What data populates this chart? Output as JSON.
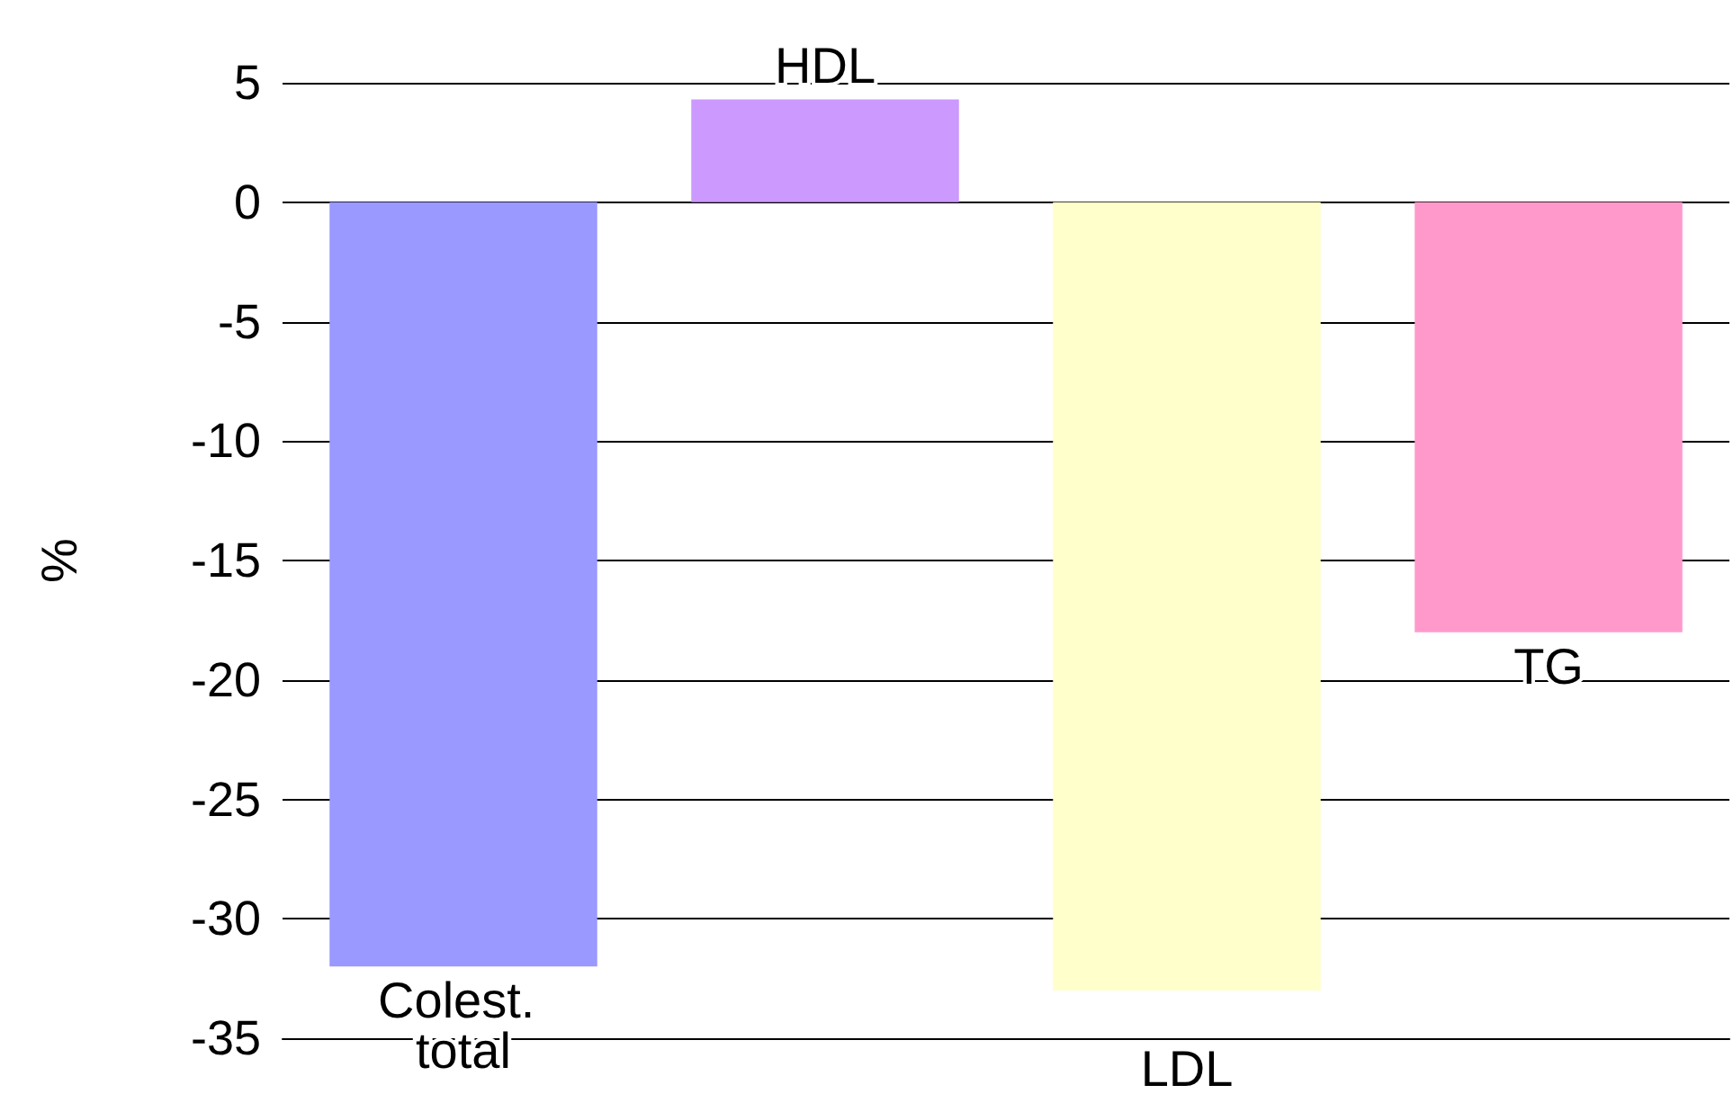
{
  "chart_data": {
    "type": "bar",
    "ylabel": "%",
    "categories": [
      "Colest. total",
      "HDL",
      "LDL",
      "TG"
    ],
    "values": [
      -32,
      4.3,
      -33,
      -18
    ],
    "colors": [
      "#9999ff",
      "#cc99ff",
      "#ffffcc",
      "#ff99cc"
    ],
    "ylim": [
      -35,
      5
    ],
    "yticks": [
      -35,
      -30,
      -25,
      -20,
      -15,
      -10,
      -5,
      0,
      5
    ],
    "grid": "y",
    "tick_labels": "y"
  }
}
